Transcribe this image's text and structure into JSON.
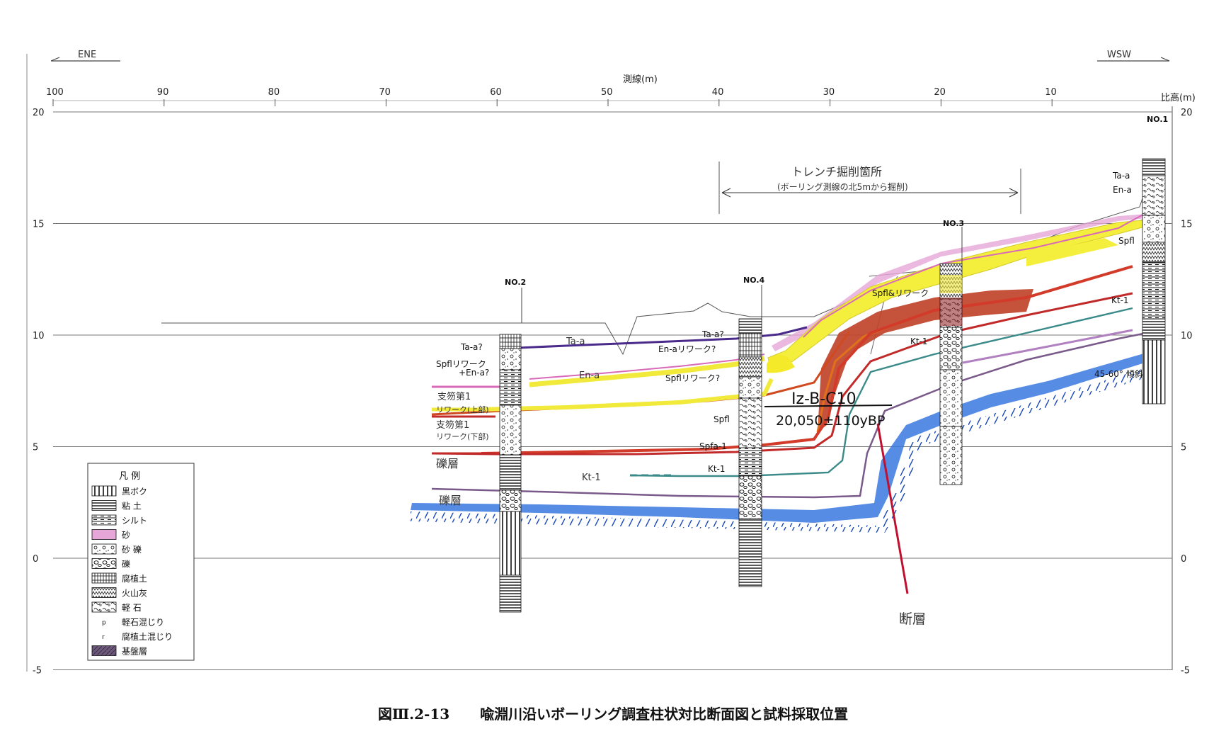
{
  "directions": {
    "left": "ENE",
    "right": "WSW"
  },
  "axes": {
    "x_title": "測線(m)",
    "y_title": "比高(m)",
    "x_ticks": [
      "100",
      "90",
      "80",
      "70",
      "60",
      "50",
      "40",
      "30",
      "20",
      "10"
    ],
    "y_ticks": [
      "20",
      "15",
      "10",
      "5",
      "0",
      "-5"
    ]
  },
  "trench": {
    "title": "トレンチ掘削箇所",
    "note": "(ボーリング測線の北5mから掘削)"
  },
  "boreholes": [
    "NO.1",
    "NO.2",
    "NO.3",
    "NO.4"
  ],
  "labels": {
    "no2_ta": "Ta-a?",
    "no2_spfl": "Spflリワーク",
    "no2_spfl2": "+En-a?",
    "no2_sf1_top": "支笏第1",
    "no2_sf1_top2": "リワーク(上部)",
    "no2_sf1_bot": "支笏第1",
    "no2_sf1_bot2": "リワーク(下部)",
    "gravel1": "礫層",
    "gravel2": "礫層",
    "ta_a_line": "Ta-a",
    "en_a_line": "En-a",
    "kt1_line": "Kt-1",
    "no4_ta": "Ta-a?",
    "no4_en": "En-aリワーク?",
    "no4_spfl": "Spflリワーク?",
    "no4_spfl2": "Spfl",
    "no4_spfa": "Spfa-1",
    "no4_kt": "Kt-1",
    "no3_spfl": "Spfl&リワーク",
    "no3_kt": "Kt-1",
    "no1_ta": "Ta-a",
    "no1_en": "En-a",
    "no1_spfl": "Spfl",
    "no1_kt": "Kt-1",
    "dip": "45-60° 傾斜",
    "sample_id": "Iz-B-C10",
    "sample_age": "20,050±110yBP",
    "fault": "断層"
  },
  "legend": {
    "title": "凡 例",
    "items": [
      {
        "pattern": "kuroboku",
        "label": "黒ボク"
      },
      {
        "pattern": "clay",
        "label": "粘 土"
      },
      {
        "pattern": "silt",
        "label": "シルト"
      },
      {
        "pattern": "sand",
        "label": "砂"
      },
      {
        "pattern": "sandgravel",
        "label": "砂 礫"
      },
      {
        "pattern": "gravel",
        "label": "礫"
      },
      {
        "pattern": "humus",
        "label": "腐植土"
      },
      {
        "pattern": "ash",
        "label": "火山灰"
      },
      {
        "pattern": "pumice",
        "label": "軽 石"
      },
      {
        "pattern": "pmark",
        "label": "軽石混じり"
      },
      {
        "pattern": "rmark",
        "label": "腐植土混じり"
      },
      {
        "pattern": "bedrock",
        "label": "基盤層"
      }
    ]
  },
  "caption": {
    "number": "図Ⅲ.2-13",
    "title": "喩淵川沿いボーリング調査柱状対比断面図と試料採取位置"
  },
  "colors": {
    "ta_a": "#4a2a8a",
    "en_a": "#f2ea3a",
    "spfl": "#c24a2a",
    "kt1": "#3a8a8a",
    "bedrock": "#2a6ad6",
    "fault": "#c01030",
    "pink": "#d86ab8"
  }
}
